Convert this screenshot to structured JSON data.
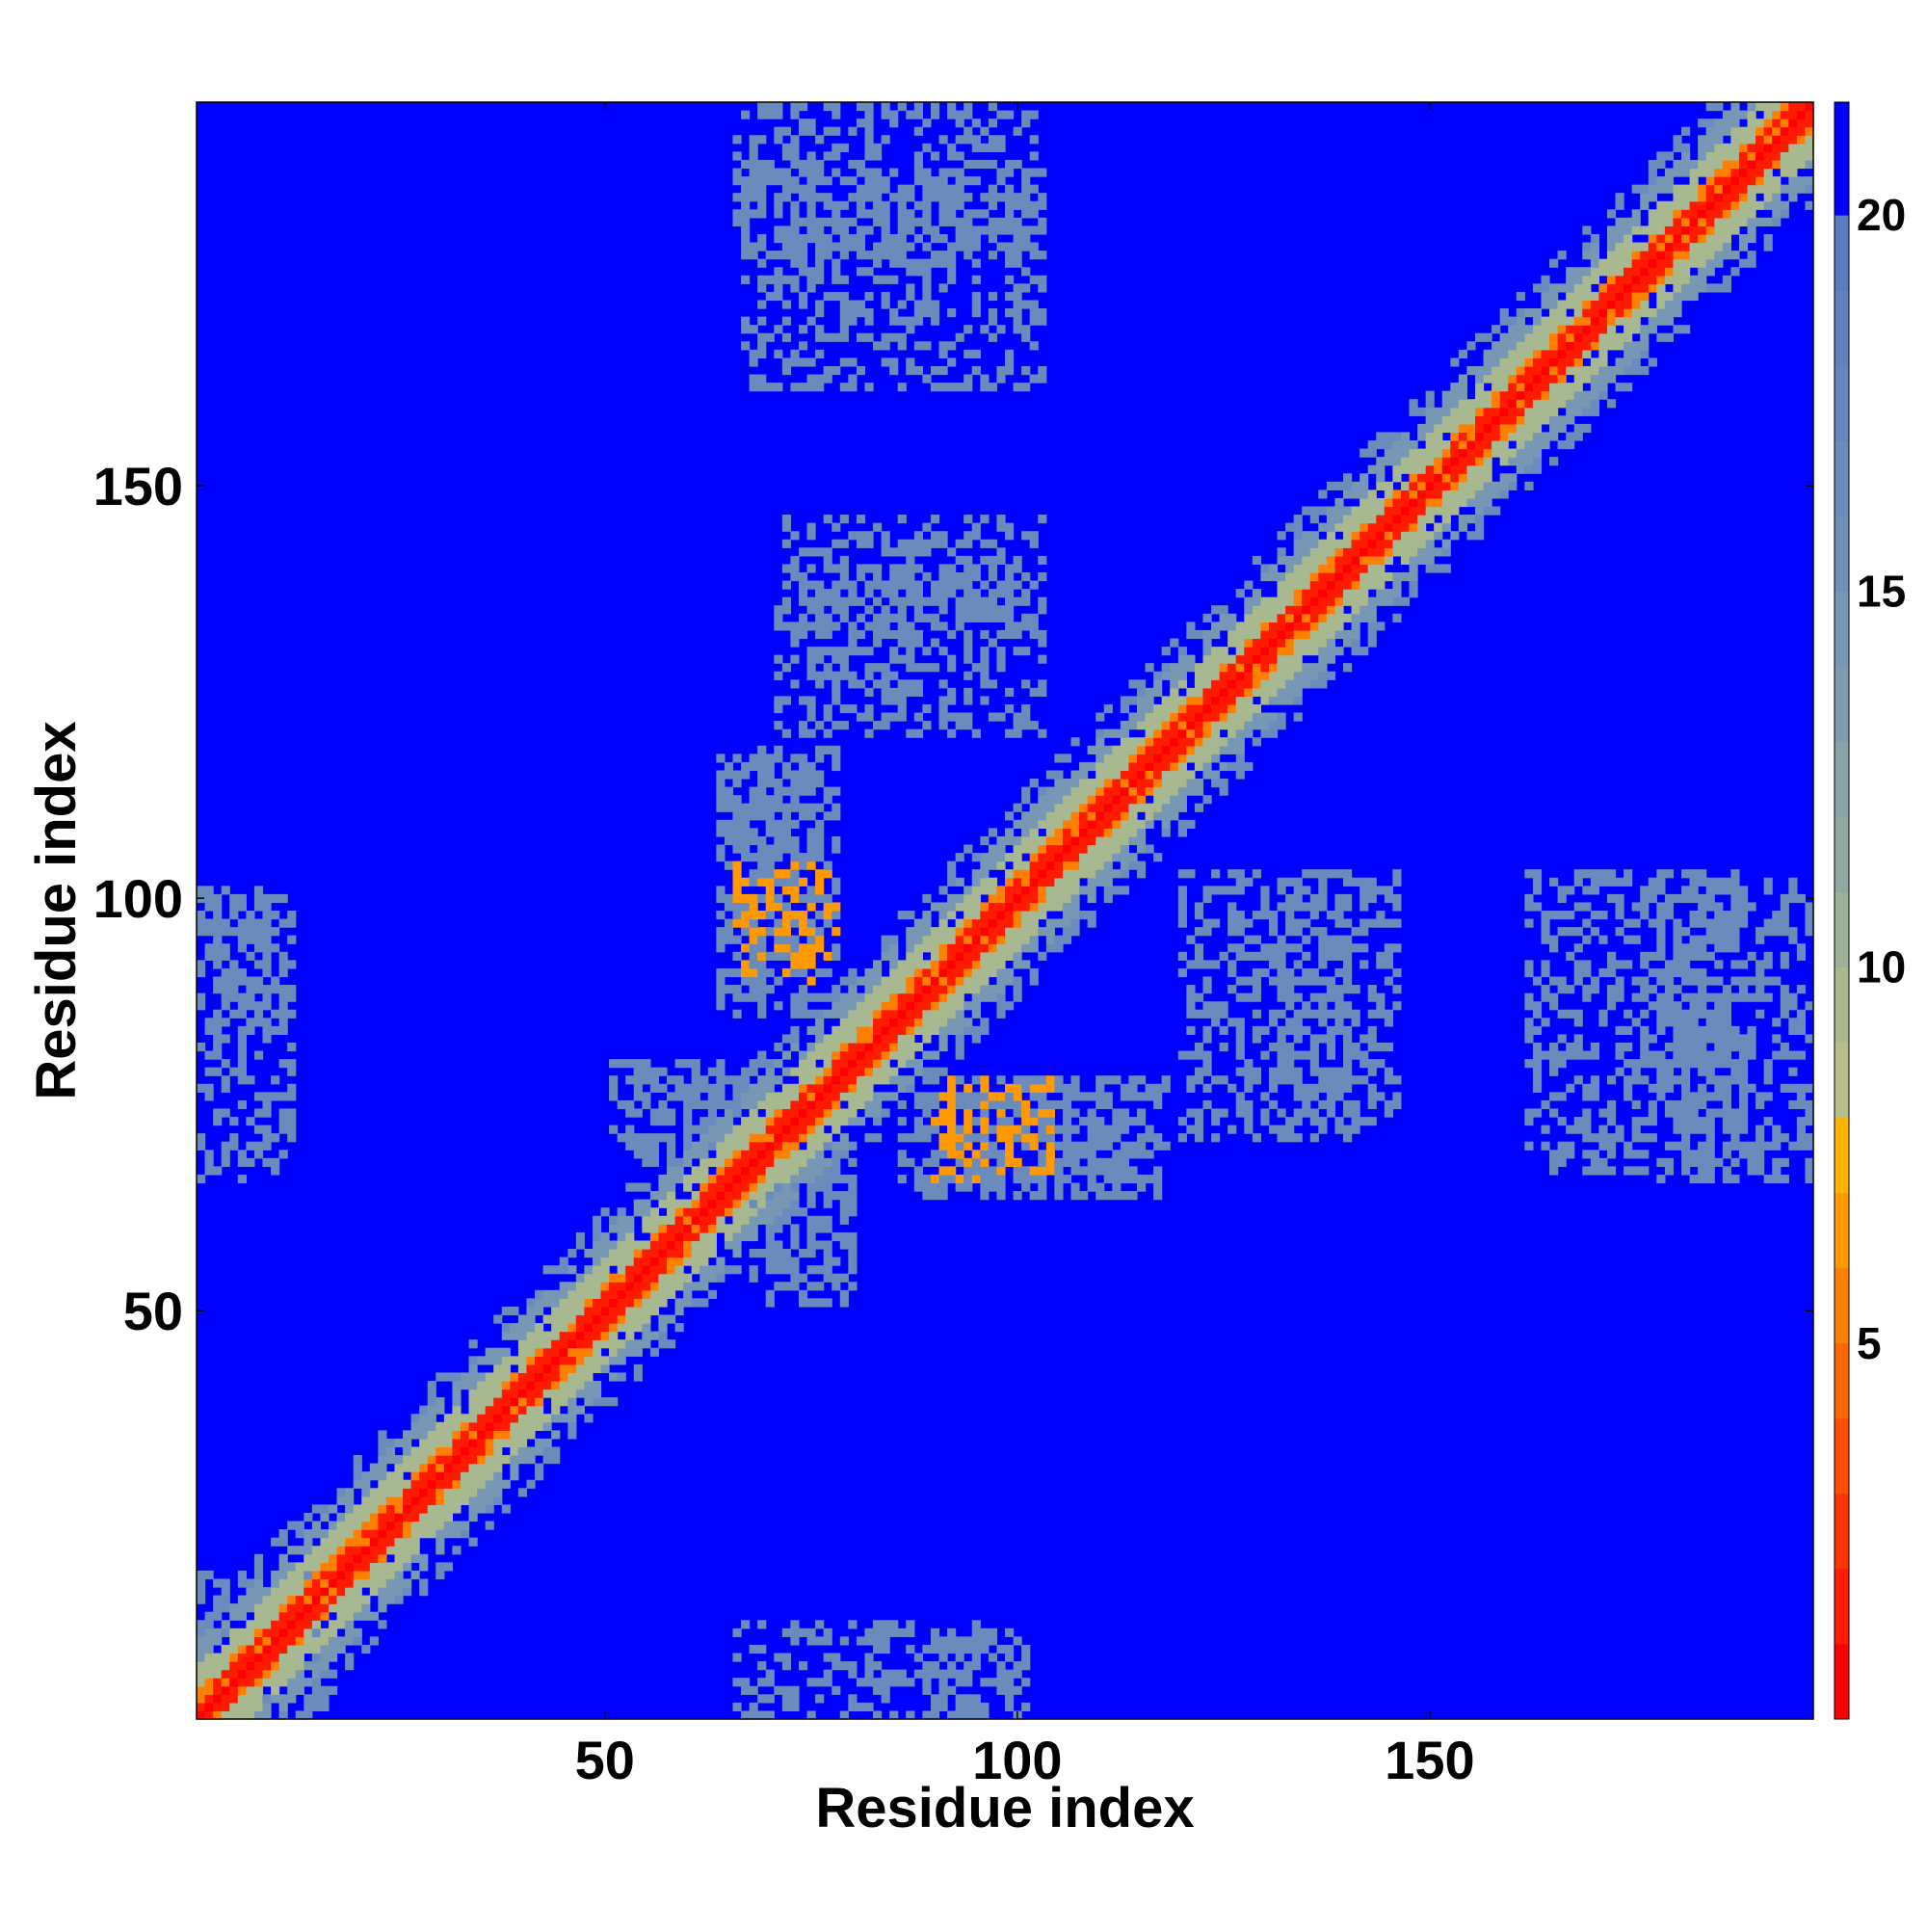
{
  "chart_data": {
    "type": "heatmap",
    "title": "",
    "xlabel": "Residue index",
    "ylabel": "Residue index",
    "xlim": [
      1,
      196
    ],
    "ylim": [
      1,
      196
    ],
    "xticks": [
      50,
      100,
      150
    ],
    "yticks": [
      50,
      100,
      150
    ],
    "colorbar": {
      "min": 0,
      "max": 21.5,
      "ticks": [
        5,
        10,
        15,
        20
      ],
      "levels": [
        {
          "to": 1,
          "color": "#ff0000"
        },
        {
          "to": 2,
          "color": "#ff1a00"
        },
        {
          "to": 3,
          "color": "#ff3300"
        },
        {
          "to": 4,
          "color": "#ff4d00"
        },
        {
          "to": 5,
          "color": "#ff6600"
        },
        {
          "to": 6,
          "color": "#ff8000"
        },
        {
          "to": 7,
          "color": "#ff9900"
        },
        {
          "to": 8,
          "color": "#ffb300"
        },
        {
          "to": 9,
          "color": "#b8be8a"
        },
        {
          "to": 10,
          "color": "#a8b890"
        },
        {
          "to": 11,
          "color": "#9cb09a"
        },
        {
          "to": 12,
          "color": "#8fa8a0"
        },
        {
          "to": 13,
          "color": "#88a4a8"
        },
        {
          "to": 14,
          "color": "#7f9caf"
        },
        {
          "to": 15,
          "color": "#7797b4"
        },
        {
          "to": 16,
          "color": "#7090b8"
        },
        {
          "to": 17,
          "color": "#6a8bbb"
        },
        {
          "to": 18,
          "color": "#6585bd"
        },
        {
          "to": 19,
          "color": "#6080be"
        },
        {
          "to": 20,
          "color": "#5b7bc0"
        },
        {
          "to": 21.5,
          "color": "#0000ff"
        }
      ]
    },
    "background_value": 21.5,
    "description": "Residue-residue distance map: low values along the diagonal, with off-diagonal contact clusters",
    "diagonal_band": {
      "core_value": 1,
      "orange_value": 6,
      "halo_value": 10,
      "outer_value": 17
    },
    "contact_clusters": [
      {
        "x": [
          64,
          78
        ],
        "y": [
          88,
          118
        ],
        "value": 17
      },
      {
        "x": [
          66,
          77
        ],
        "y": [
          90,
          104
        ],
        "value": 7
      },
      {
        "x": [
          51,
          66
        ],
        "y": [
          70,
          80
        ],
        "value": 17
      },
      {
        "x": [
          68,
          80
        ],
        "y": [
          54,
          70
        ],
        "value": 17
      },
      {
        "x": [
          86,
          115
        ],
        "y": [
          64,
          76
        ],
        "value": 17
      },
      {
        "x": [
          91,
          104
        ],
        "y": [
          66,
          78
        ],
        "value": 7
      },
      {
        "x": [
          72,
          103
        ],
        "y": [
          132,
          146
        ],
        "value": 17
      },
      {
        "x": [
          66,
          102
        ],
        "y": [
          178,
          196
        ],
        "value": 17
      },
      {
        "x": [
          120,
          140
        ],
        "y": [
          71,
          103
        ],
        "value": 17
      },
      {
        "x": [
          162,
          188
        ],
        "y": [
          67,
          103
        ],
        "value": 17
      },
      {
        "x": [
          1,
          10
        ],
        "y": [
          90,
          101
        ],
        "value": 17
      },
      {
        "x": [
          1,
          18
        ],
        "y": [
          1,
          18
        ],
        "value": 17
      },
      {
        "x": [
          66,
          100
        ],
        "y": [
          1,
          12
        ],
        "value": 17
      }
    ]
  }
}
